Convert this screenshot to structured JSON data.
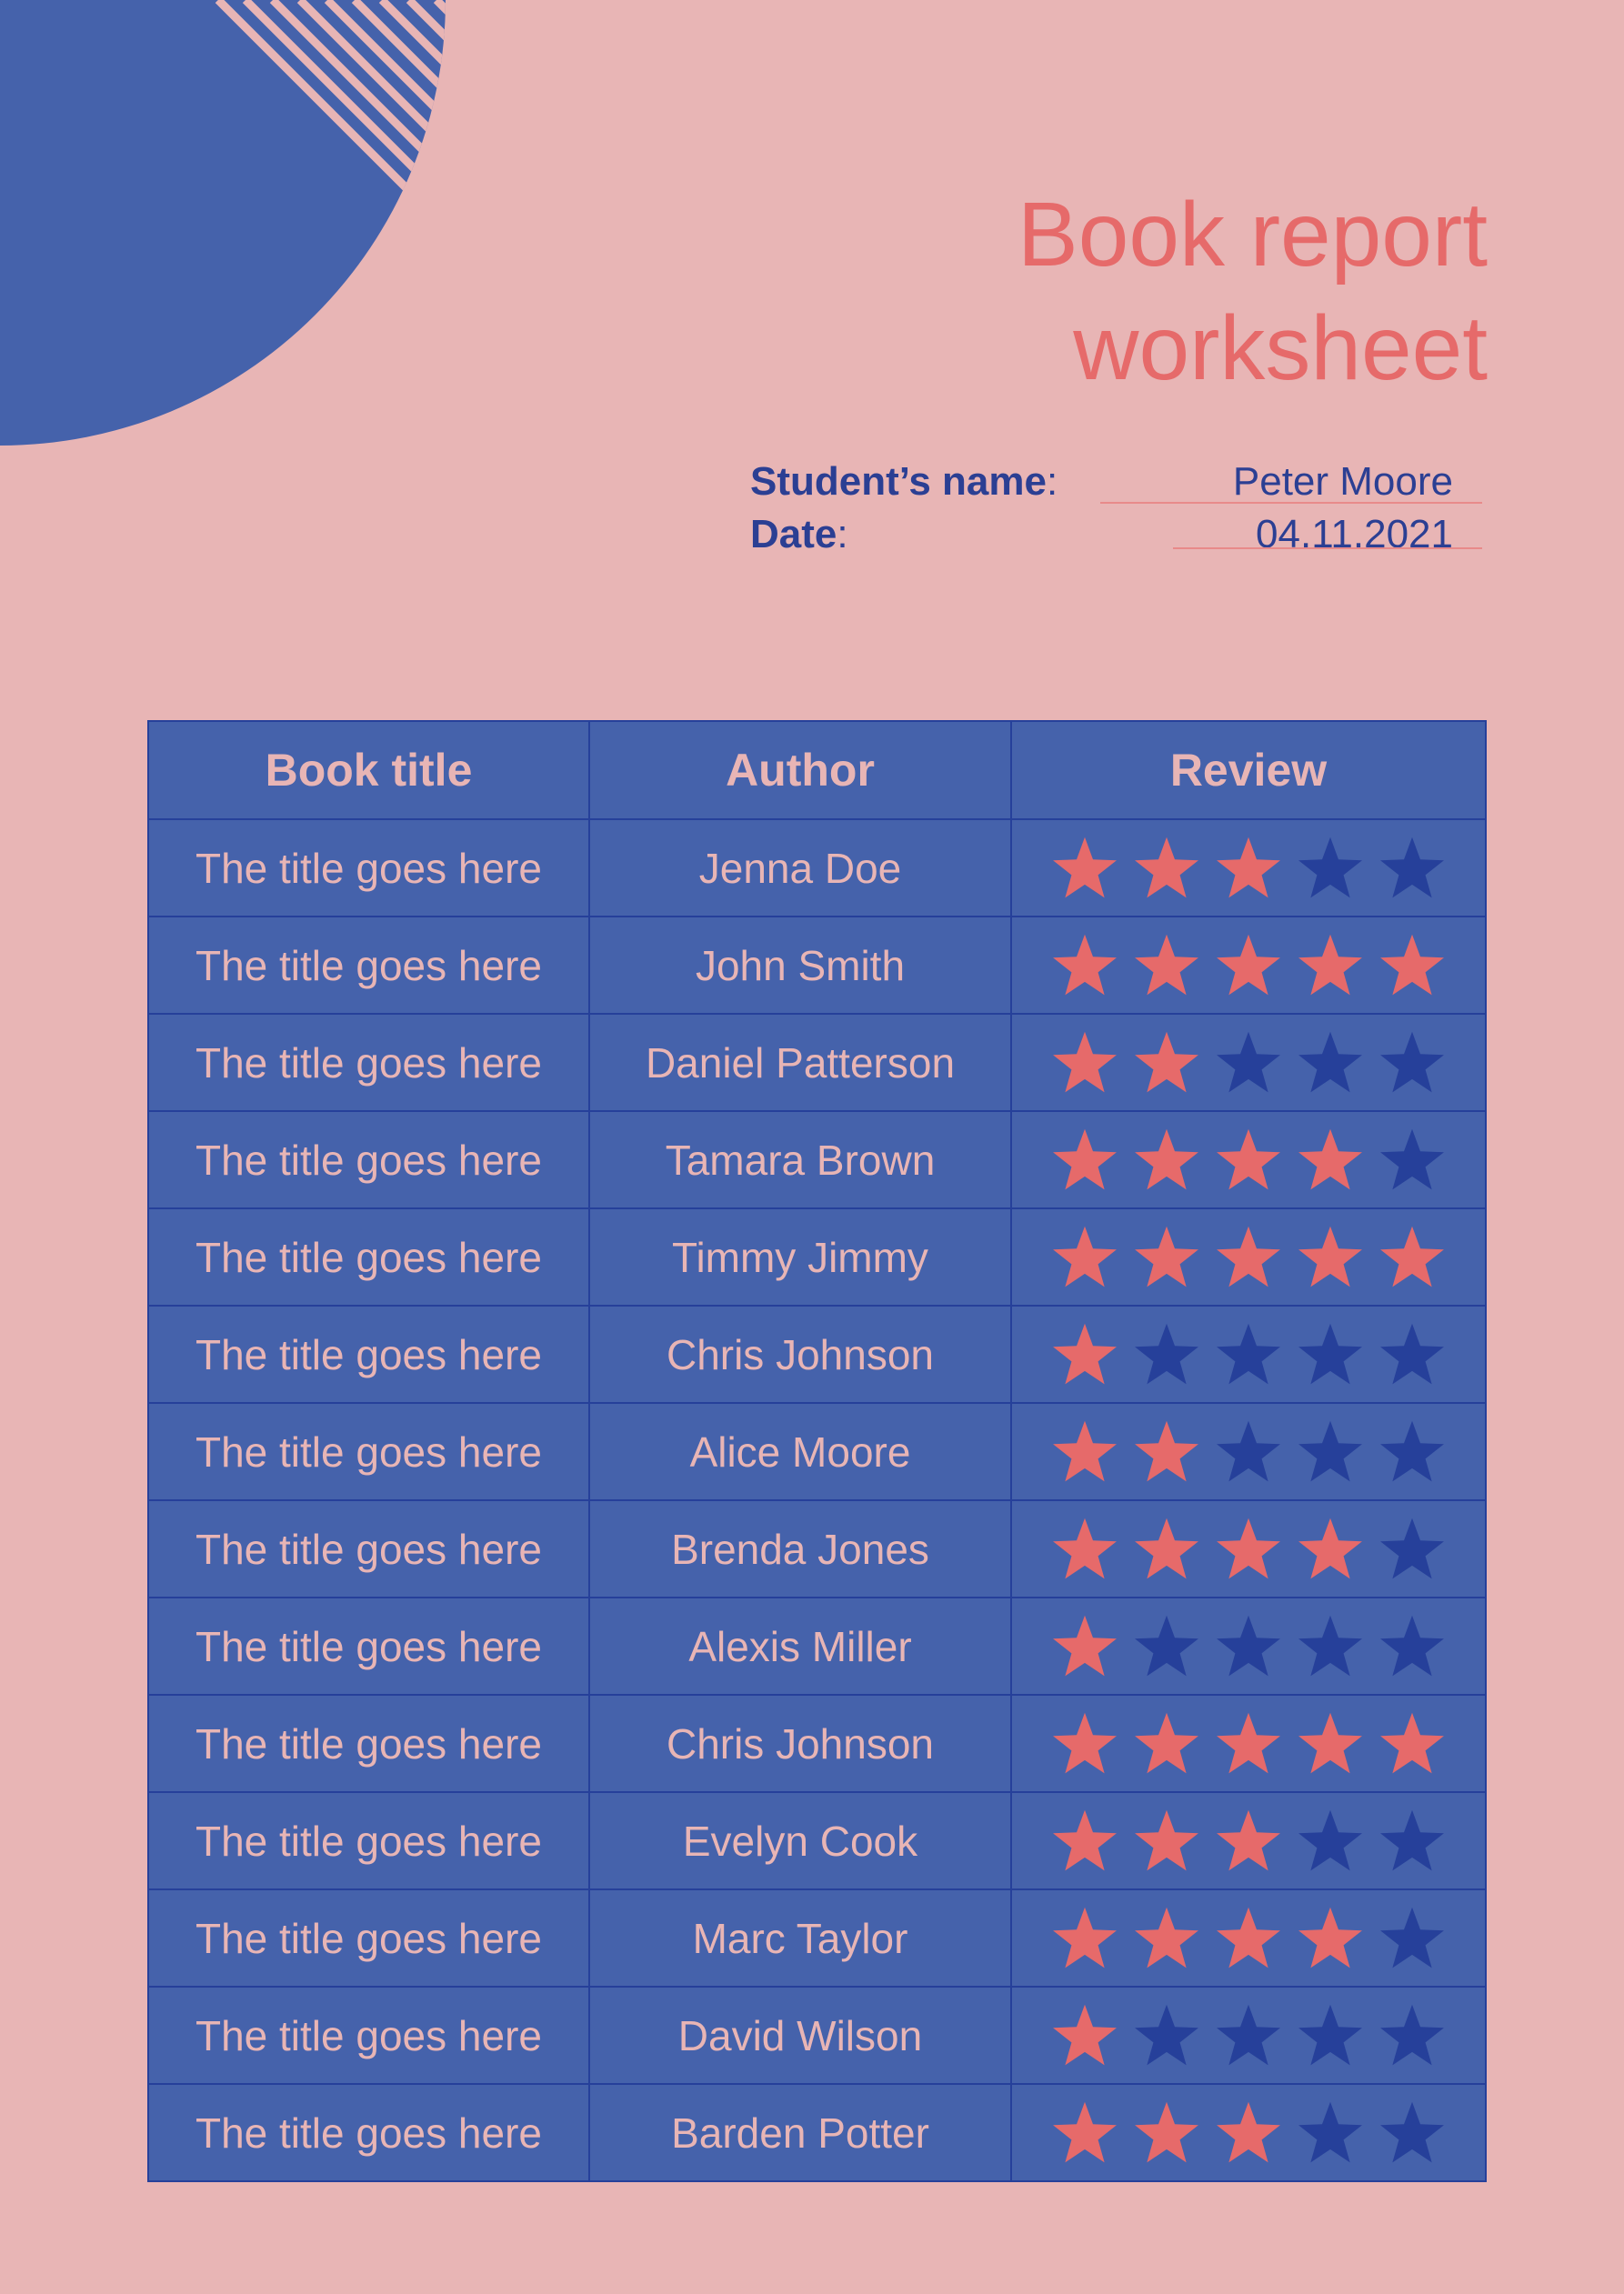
{
  "document": {
    "title_line1": "Book report",
    "title_line2": "worksheet",
    "student_label": "Student’s name",
    "student_value": "Peter Moore",
    "date_label": "Date",
    "date_value": "04.11.2021"
  },
  "colors": {
    "background": "#e8b5b5",
    "accent_blue": "#4562ab",
    "dark_blue": "#2b3f93",
    "coral": "#e66a6a",
    "star_filled": "#e66a6a",
    "star_empty": "#26409a"
  },
  "table": {
    "headers": [
      "Book title",
      "Author",
      "Review"
    ],
    "max_rating": 5,
    "rows": [
      {
        "title": "The title goes here",
        "author": "Jenna Doe",
        "rating": 3
      },
      {
        "title": "The title goes here",
        "author": "John Smith",
        "rating": 5
      },
      {
        "title": "The title goes here",
        "author": "Daniel Patterson",
        "rating": 2
      },
      {
        "title": "The title goes here",
        "author": "Tamara Brown",
        "rating": 4
      },
      {
        "title": "The title goes here",
        "author": "Timmy Jimmy",
        "rating": 5
      },
      {
        "title": "The title goes here",
        "author": "Chris Johnson",
        "rating": 1
      },
      {
        "title": "The title goes here",
        "author": "Alice Moore",
        "rating": 2
      },
      {
        "title": "The title goes here",
        "author": "Brenda Jones",
        "rating": 4
      },
      {
        "title": "The title goes here",
        "author": "Alexis Miller",
        "rating": 1
      },
      {
        "title": "The title goes here",
        "author": "Chris Johnson",
        "rating": 5
      },
      {
        "title": "The title goes here",
        "author": "Evelyn Cook",
        "rating": 3
      },
      {
        "title": "The title goes here",
        "author": "Marc Taylor",
        "rating": 4
      },
      {
        "title": "The title goes here",
        "author": "David Wilson",
        "rating": 1
      },
      {
        "title": "The title goes here",
        "author": "Barden Potter",
        "rating": 3
      }
    ]
  }
}
